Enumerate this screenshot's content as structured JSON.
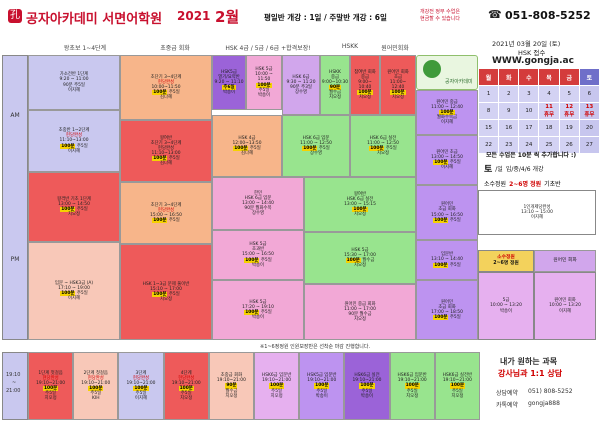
{
  "header": {
    "logo": "공자아카데미 서면어학원",
    "year": "2021",
    "month": "2월",
    "weekday_info": "평일반 개강 : 1일 / 주말반 개강 : 6일",
    "notice_1": "개강전 정부 수업은",
    "notice_2": "현금할 수 있습니다",
    "phone": "051-808-5252"
  },
  "columns": [
    {
      "label": "왕초보 1~4단계"
    },
    {
      "label": "초중급 회화"
    },
    {
      "label": "HSK  4급 / 5급 / 6급 +합격보장!"
    },
    {
      "label": "HSKK"
    },
    {
      "label": "원어민회화"
    }
  ],
  "rows": {
    "am": "AM",
    "pm": "PM",
    "eve_1": "19:10",
    "eve_2": "~",
    "eve_3": "21:00"
  },
  "cells": {
    "a1": [
      "가소전반 1단계",
      "9:20 ~ 11:00",
      "90분 주5일",
      "이지혜"
    ],
    "a2": [
      "초중반 1~2단계",
      "현당완성",
      "11:10~13:00",
      "100분",
      "주5일",
      "이지혜"
    ],
    "a3": [
      "왕격반 기초 1단계",
      "13:00 ~ 14:50",
      "100분",
      "주5일",
      "치오정"
    ],
    "a4": [
      "입문 ~ HSK3급 (A)",
      "17:10 ~ 19:00",
      "100분",
      "주5일",
      "이지혜"
    ],
    "b1": [
      "초단기 3~4단계",
      "현당완성",
      "10:00~11:50",
      "100분",
      "주5일",
      "김다혜"
    ],
    "b2": [
      "왕여반",
      "초단기 3~4단계",
      "현당완성",
      "11:10~13:00",
      "100분",
      "주5일",
      "김다혜"
    ],
    "b3": [
      "초단기 3~4단계",
      "현당완성",
      "15:00 ~ 16:50",
      "100분",
      "주5일"
    ],
    "b4": [
      "HSK 1~3급 문제 풀이반",
      "15:10 ~ 17:00",
      "100분",
      "주5일",
      "치오정"
    ],
    "c1": [
      "HSK5급",
      "열기/요약반",
      "9:20 ~ 11:10",
      "주6일",
      "박송이"
    ],
    "c2": [
      "HSK 5급",
      "10:00 ~",
      "11:50",
      "100분",
      "주5일",
      "박송이"
    ],
    "c3": [
      "HSK 6급",
      "9:30 ~ 11:20",
      "90분 주3일",
      "장수영"
    ],
    "c4": [
      "HSK 4급",
      "12:00~13:50",
      "100분",
      "주5일",
      "김다혜"
    ],
    "c5": [
      "HSK 6급 입문",
      "11:00 ~ 12:50",
      "100분",
      "주5일",
      "장수영"
    ],
    "c6": [
      "한민",
      "HSK 6급 입문",
      "13:00 ~ 14:40",
      "90분 월화수목",
      "장수영"
    ],
    "c7": [
      "HSK 5급",
      "초과반",
      "15:00 ~ 16:50",
      "100분",
      "주5일",
      "박송이"
    ],
    "c8": [
      "HSK 5급",
      "17:20 ~ 19:10",
      "100분",
      "주5일",
      "박송이"
    ],
    "d1": [
      "HSKK",
      "중급",
      "9:00~10:30",
      "90분",
      "월수금",
      "치오정"
    ],
    "d2": [
      "참여반 회화",
      "중급",
      "9:00~",
      "10:40",
      "100분",
      "치오정"
    ],
    "d3": [
      "HSK 6급 실전",
      "11:00 ~ 12:50",
      "100분",
      "주5일",
      "치오정"
    ],
    "d4": [
      "왕여반",
      "HSK 6급 실전",
      "13:00 ~ 15:15",
      "100분",
      "치오정"
    ],
    "d5": [
      "HSK 5급",
      "15:30 ~ 17:00",
      "100분",
      "월수금",
      "치오정"
    ],
    "d6": [
      "원어민 중급 회화",
      "11:00 ~ 17:00",
      "90분 월수금",
      "치오정"
    ],
    "e1": [
      "원어민 회화",
      "초급",
      "11:00~",
      "12:40",
      "100분",
      "치오정"
    ],
    "e2": [
      "원어민 중급",
      "11:00 ~ 12:40",
      "100분",
      "월화수목금",
      "이지혜"
    ],
    "e3": [
      "원어민 초급",
      "13:00 ~ 14:50",
      "100분",
      "주5일",
      "이지혜"
    ],
    "e4": [
      "원어민",
      "초급 회화",
      "15:00 ~ 16:50",
      "100분",
      "주5일"
    ],
    "e5": [
      "입문반",
      "13:10 ~ 14:40",
      "100분",
      "주5일"
    ],
    "e6": [
      "원어민",
      "초급 회화",
      "17:00 ~ 18:50",
      "100분",
      "주5일"
    ]
  },
  "evening": [
    [
      "1단계 첫걸음",
      "현당완성",
      "19:10~21:00",
      "100분",
      "주5일",
      "치오정"
    ],
    [
      "2단계 첫걸음",
      "현당완성",
      "19:10~21:00",
      "100분",
      "주5일",
      "KIH"
    ],
    [
      "3단계",
      "현당완성",
      "19:10~21:00",
      "100분",
      "주5일",
      "이지혜"
    ],
    [
      "4단계",
      "현당완성",
      "19:10~21:00",
      "100분",
      "주5일",
      "치오정"
    ],
    [
      "초중급 회화",
      "19:10~21:00",
      "90분",
      "월수금",
      "치오정"
    ],
    [
      "HSK6급 입문반",
      "19:10~21:00",
      "100분",
      "주5일",
      "치오정"
    ],
    [
      "HSK5급 입문반",
      "19:10~21:00",
      "100분",
      "주5일",
      "박송이"
    ],
    [
      "HSK6급 실전",
      "19:10~21:00",
      "100분",
      "주5일",
      "박송이"
    ],
    [
      "HSK6급 입문반",
      "19:10~21:00",
      "100분",
      "주5일",
      "치오정"
    ],
    [
      "HSK6급 실전반",
      "19:10~21:00",
      "100분",
      "주5일",
      "치오정"
    ]
  ],
  "note": "※1~6정정원 인원보장반은 선착순 마감 진행합니다.",
  "sidebar": {
    "date": "2021년 03월 20일 (토)",
    "hsk": "HSK 접수",
    "web": "WWW.gongja.ac",
    "illustration": "공자아카데미",
    "cal_head": [
      "월",
      "화",
      "수",
      "목",
      "금",
      "토"
    ],
    "cal_rows": [
      [
        "1",
        "2",
        "3",
        "4",
        "5",
        "6"
      ],
      [
        "8",
        "9",
        "10",
        "11\n휴무",
        "12\n휴무",
        "13\n휴무"
      ],
      [
        "15",
        "16",
        "17",
        "18",
        "19",
        "20"
      ],
      [
        "22",
        "23",
        "24",
        "25",
        "26",
        "27"
      ]
    ],
    "all_class": "모든 수업은 10분 씩 추가합니다 :)",
    "sat_label": "토",
    "sat_days": "/일",
    "sat_text": "입/중/4/6 개강",
    "small_title": "소수정원",
    "small_num": "2~6명 정원",
    "small_basic": "기초반",
    "small_sub": "1인개제당완성",
    "small_time": "13:10 ~ 15:00",
    "small_teacher": "이지혜",
    "box_title": "소수정원",
    "box_sub": "2~6명 정원",
    "native": "원어민 회화",
    "box1": [
      "5급",
      "10:00 ~ 13:20",
      "박송이"
    ],
    "box2": [
      "원어민 회화",
      "10:00 ~ 13:20",
      "이지혜"
    ],
    "bottom_title": "내가 원하는 과목",
    "bottom_sub": "강사님과 1:1 상담",
    "consult_label": "상담예약",
    "consult_phone": "051) 808-5252",
    "kakao_label": "카톡예약",
    "kakao_id": "gongja888"
  }
}
